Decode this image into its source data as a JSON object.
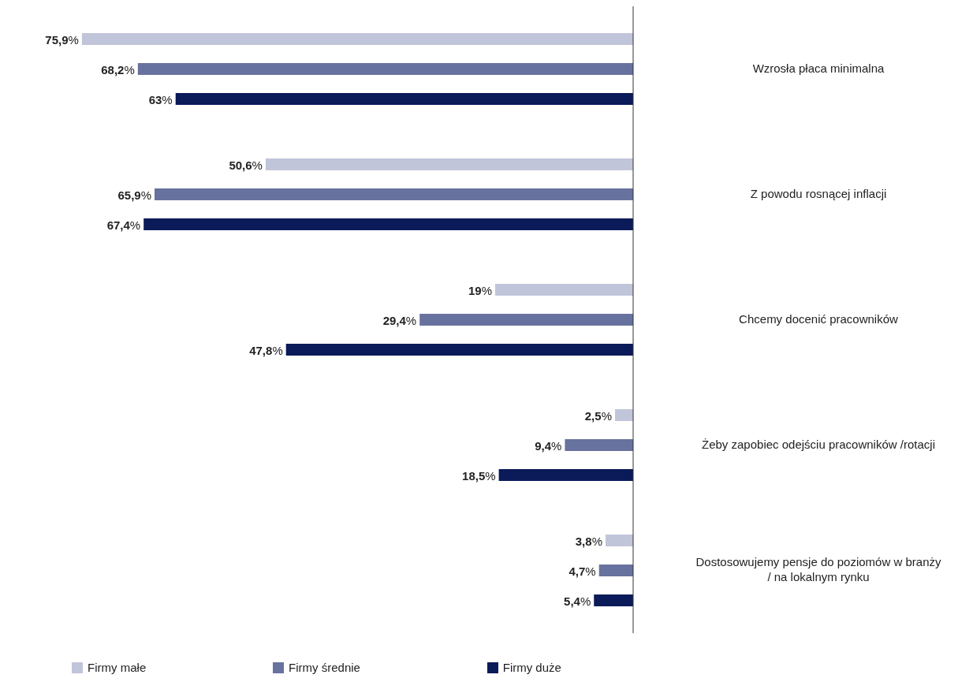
{
  "chart_data": {
    "type": "bar",
    "orientation": "horizontal",
    "categories": [
      "Wzrosła płaca minimalna",
      "Z powodu rosnącej inflacji",
      "Chcemy docenić pracowników",
      "Żeby zapobiec odejściu pracowników /rotacji",
      "Dostosowujemy pensje do poziomów w branży / na lokalnym rynku"
    ],
    "series": [
      {
        "name": "Firmy małe",
        "color": "#c1c5d9",
        "values": [
          75.9,
          50.6,
          19,
          2.5,
          3.8
        ],
        "value_labels": [
          "75,9%",
          "50,6%",
          "19%",
          "2,5%",
          "3,8%"
        ]
      },
      {
        "name": "Firmy średnie",
        "color": "#67729e",
        "values": [
          68.2,
          65.9,
          29.4,
          9.4,
          4.7
        ],
        "value_labels": [
          "68,2%",
          "65,9%",
          "29,4%",
          "9,4%",
          "4,7%"
        ]
      },
      {
        "name": "Firmy duże",
        "color": "#0b1a58",
        "values": [
          63,
          67.4,
          47.8,
          18.5,
          5.4
        ],
        "value_labels": [
          "63%",
          "67,4%",
          "47,8%",
          "18,5%",
          "5,4%"
        ]
      }
    ],
    "legend": "bottom",
    "grid": false,
    "tick_labels": "y"
  }
}
